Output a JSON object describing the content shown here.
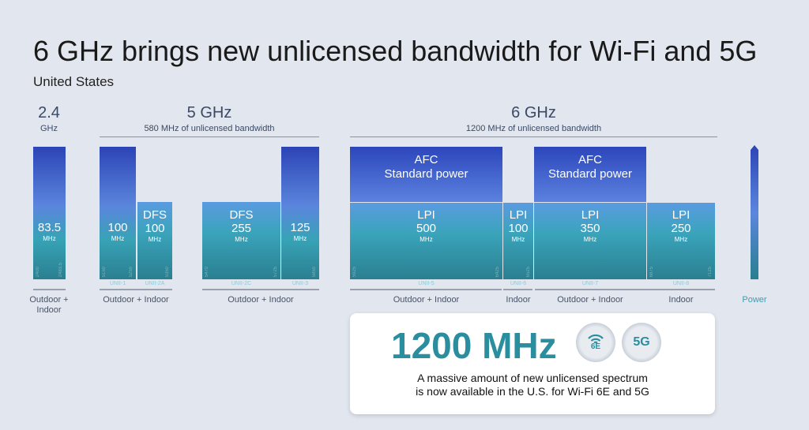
{
  "title": "6 GHz brings new unlicensed bandwidth for Wi-Fi and 5G",
  "subtitle": "United States",
  "groups": {
    "g24": {
      "big": "2.4",
      "small": "GHz"
    },
    "g5": {
      "big": "5 GHz",
      "small": "580 MHz of unlicensed bandwidth"
    },
    "g6": {
      "big": "6 GHz",
      "small": "1200 MHz of unlicensed bandwidth"
    }
  },
  "unit": "MHz",
  "bars": {
    "b24": {
      "value": "83.5",
      "f1": "2400",
      "f2": "2483.5"
    },
    "unii1": {
      "value": "100",
      "band": "UNII-1",
      "f1": "5150",
      "f2": "5250"
    },
    "unii2a": {
      "label": "DFS",
      "value": "100",
      "band": "UNII-2A",
      "f2": "5350"
    },
    "unii2c": {
      "label": "DFS",
      "value": "255",
      "band": "UNII-2C",
      "f1": "5470",
      "f2": "5725"
    },
    "unii3": {
      "value": "125",
      "band": "UNII-3",
      "f2": "5850"
    },
    "unii5": {
      "label": "LPI",
      "value": "500",
      "band": "UNII-5",
      "f1": "5925",
      "f2": "6425"
    },
    "unii6": {
      "label": "LPI",
      "value": "100",
      "band": "UNII-6",
      "f2": "6525"
    },
    "unii7": {
      "label": "LPI",
      "value": "350",
      "band": "UNII-7"
    },
    "unii8": {
      "label": "LPI",
      "value": "250",
      "band": "UNII-8",
      "f1": "6875",
      "f2": "7125"
    }
  },
  "afc": {
    "line1": "AFC",
    "line2": "Standard power"
  },
  "regions": {
    "r24": "Outdoor + Indoor",
    "r5a": "Outdoor + Indoor",
    "r5b": "Outdoor + Indoor",
    "r6a": "Outdoor + Indoor",
    "r6b": "Indoor",
    "r6c": "Outdoor + Indoor",
    "r6d": "Indoor"
  },
  "power_label": "Power",
  "card": {
    "headline": "1200 MHz",
    "text1": "A massive amount of new unlicensed spectrum",
    "text2": "is now available in the U.S. for Wi-Fi 6E and 5G",
    "badge1": "6E",
    "badge2": "5G"
  },
  "colors": {
    "accent": "#2a8e9f",
    "afc": "#2c46bb",
    "background": "#e2e6ee"
  }
}
